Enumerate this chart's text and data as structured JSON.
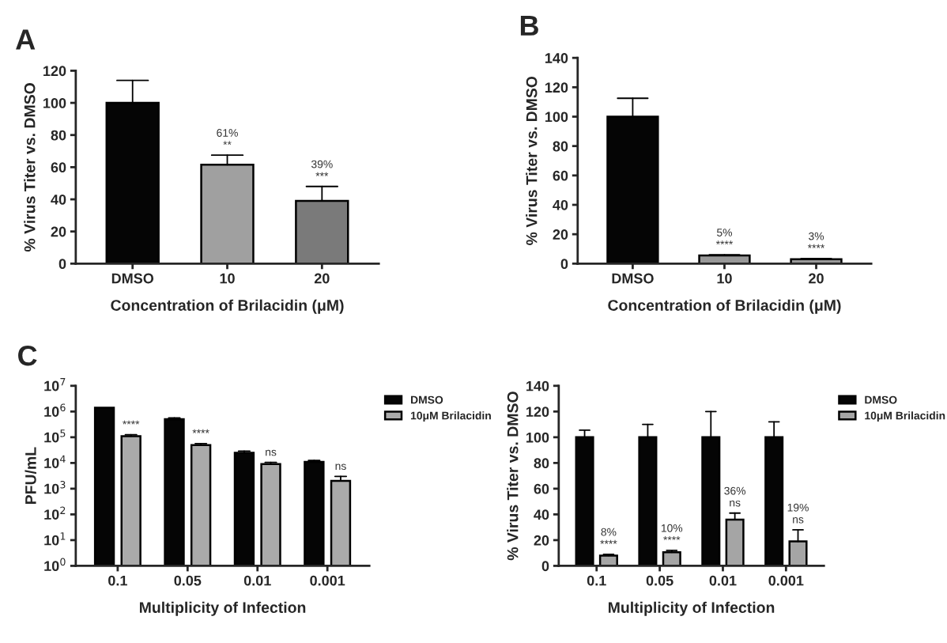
{
  "chart_data": [
    {
      "type": "bar",
      "annotations": [
        "A"
      ],
      "xlabel": "Concentration of Brilacidin (μM)",
      "ylabel": "% Virus Titer vs. DMSO",
      "categories": [
        "DMSO",
        "10",
        "20"
      ],
      "values": [
        100,
        61.5,
        39
      ],
      "errors": [
        14,
        6,
        9
      ],
      "colors": [
        "#050505",
        "#a0a0a0",
        "#7a7a7a"
      ],
      "value_labels": [
        null,
        "61%\n**",
        "39%\n***"
      ],
      "ylim": [
        0,
        120
      ],
      "yticks": [
        0,
        20,
        40,
        60,
        80,
        100,
        120
      ],
      "grid": false,
      "legend": false
    },
    {
      "type": "bar",
      "annotations": [
        "B"
      ],
      "xlabel": "Concentration of Brilacidin (μM)",
      "ylabel": "% Virus Titer vs. DMSO",
      "categories": [
        "DMSO",
        "10",
        "20"
      ],
      "values": [
        100,
        5.5,
        3
      ],
      "errors": [
        12.5,
        0.5,
        0.5
      ],
      "colors": [
        "#050505",
        "#999999",
        "#999999"
      ],
      "value_labels": [
        null,
        "5%\n****",
        "3%\n****"
      ],
      "ylim": [
        0,
        140
      ],
      "yticks": [
        0,
        20,
        40,
        60,
        80,
        100,
        120,
        140
      ],
      "grid": false,
      "legend": false
    },
    {
      "type": "bar",
      "annotations": [
        "C"
      ],
      "xlabel": "Multiplicity of Infection",
      "ylabel": "PFU/mL",
      "categories": [
        "0.1",
        "0.05",
        "0.01",
        "0.001"
      ],
      "log": true,
      "ylim": [
        1,
        10000000
      ],
      "yticks": [
        {
          "value": 1,
          "label": "10$^{0}$"
        },
        {
          "value": 10,
          "label": "10$^{1}$"
        },
        {
          "value": 100,
          "label": "10$^{2}$"
        },
        {
          "value": 1000,
          "label": "10$^{3}$"
        },
        {
          "value": 10000,
          "label": "10$^{4}$"
        },
        {
          "value": 100000,
          "label": "10$^{5}$"
        },
        {
          "value": 1000000,
          "label": "10$^{6}$"
        },
        {
          "value": 10000000,
          "label": "10$^{7}$"
        }
      ],
      "grid": false,
      "legend": "right",
      "series": [
        {
          "name": "DMSO",
          "color": "#050505",
          "values": [
            1400000,
            500000,
            25000,
            11000
          ],
          "errors": [
            null,
            60000,
            4000,
            1500
          ]
        },
        {
          "name": "10μM Brilacidin",
          "color": "#aaaaaa",
          "values": [
            110000,
            50000,
            9000,
            2000
          ],
          "errors": [
            15000,
            7000,
            1500,
            1000
          ],
          "value_labels": [
            "****",
            "****",
            "ns",
            "ns"
          ]
        }
      ]
    },
    {
      "type": "bar",
      "xlabel": "Multiplicity of Infection",
      "ylabel": "% Virus Titer vs. DMSO",
      "categories": [
        "0.1",
        "0.05",
        "0.01",
        "0.001"
      ],
      "ylim": [
        0,
        140
      ],
      "yticks": [
        0,
        20,
        40,
        60,
        80,
        100,
        120,
        140
      ],
      "grid": false,
      "legend": "right",
      "series": [
        {
          "name": "DMSO",
          "color": "#050505",
          "values": [
            100,
            100,
            100,
            100
          ],
          "errors": [
            5.5,
            10,
            20,
            12
          ]
        },
        {
          "name": "10μM Brilacidin",
          "color": "#a5a5a5",
          "values": [
            8,
            10.5,
            36,
            19
          ],
          "errors": [
            1,
            1.5,
            5,
            9
          ],
          "value_labels": [
            "8%\n****",
            "10%\n****",
            "36%\nns",
            "19%\nns"
          ]
        }
      ]
    }
  ]
}
